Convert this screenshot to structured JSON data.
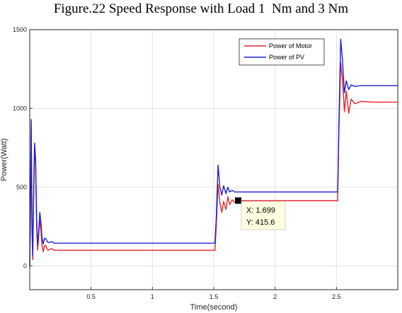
{
  "caption": "Figure.22 Speed Response with Load 1  Nm and 3 Nm",
  "colors": {
    "motor": "#e3262b",
    "pv": "#1f1fd6",
    "grid": "#dcdcdc",
    "axes": "#262626"
  },
  "chart_data": {
    "type": "line",
    "title": "",
    "xlabel": "Time(second)",
    "ylabel": "Power(Watt)",
    "xlim": [
      0,
      3
    ],
    "ylim": [
      -150,
      1500
    ],
    "x_ticks": [
      0.5,
      1,
      1.5,
      2,
      2.5
    ],
    "y_ticks": [
      0,
      500,
      1000,
      1500
    ],
    "grid": true,
    "legend_position": "top-right",
    "series": [
      {
        "name": "Power of Motor",
        "color": "#e3262b",
        "x": [
          0,
          0.005,
          0.012,
          0.018,
          0.024,
          0.032,
          0.04,
          0.048,
          0.056,
          0.064,
          0.072,
          0.082,
          0.09,
          0.1,
          0.11,
          0.12,
          0.13,
          0.14,
          0.15,
          0.16,
          0.18,
          0.2,
          0.22,
          0.25,
          0.3,
          0.4,
          0.6,
          0.8,
          1.0,
          1.2,
          1.4,
          1.51,
          1.52,
          1.535,
          1.55,
          1.565,
          1.58,
          1.6,
          1.615,
          1.63,
          1.65,
          1.67,
          1.7,
          1.8,
          2.0,
          2.2,
          2.4,
          2.51,
          2.52,
          2.535,
          2.55,
          2.565,
          2.58,
          2.6,
          2.62,
          2.65,
          2.7,
          2.8,
          3.0
        ],
        "y": [
          0,
          300,
          880,
          250,
          40,
          420,
          760,
          640,
          260,
          100,
          180,
          290,
          240,
          130,
          90,
          130,
          130,
          110,
          100,
          105,
          110,
          100,
          100,
          100,
          100,
          100,
          100,
          100,
          100,
          100,
          100,
          100,
          250,
          520,
          400,
          340,
          410,
          360,
          440,
          390,
          420,
          405,
          415.6,
          415,
          415,
          415,
          415,
          415,
          850,
          1290,
          1180,
          980,
          1110,
          970,
          1060,
          1030,
          1045,
          1040,
          1040
        ]
      },
      {
        "name": "Power of PV",
        "color": "#1f1fd6",
        "x": [
          0,
          0.005,
          0.012,
          0.018,
          0.024,
          0.032,
          0.04,
          0.048,
          0.056,
          0.064,
          0.072,
          0.082,
          0.09,
          0.1,
          0.11,
          0.12,
          0.13,
          0.14,
          0.15,
          0.16,
          0.18,
          0.2,
          0.22,
          0.25,
          0.3,
          0.4,
          0.6,
          0.8,
          1.0,
          1.2,
          1.4,
          1.51,
          1.52,
          1.535,
          1.55,
          1.565,
          1.58,
          1.6,
          1.615,
          1.63,
          1.65,
          1.67,
          1.7,
          1.8,
          2.0,
          2.2,
          2.4,
          2.51,
          2.52,
          2.535,
          2.55,
          2.565,
          2.58,
          2.6,
          2.62,
          2.65,
          2.7,
          2.8,
          3.0
        ],
        "y": [
          0,
          350,
          930,
          300,
          60,
          480,
          780,
          680,
          310,
          130,
          210,
          340,
          290,
          180,
          140,
          175,
          175,
          160,
          150,
          150,
          155,
          145,
          145,
          145,
          145,
          145,
          145,
          145,
          145,
          145,
          145,
          145,
          300,
          640,
          500,
          450,
          510,
          460,
          500,
          470,
          480,
          470,
          470,
          470,
          470,
          470,
          470,
          470,
          900,
          1440,
          1300,
          1100,
          1175,
          1120,
          1150,
          1140,
          1145,
          1145,
          1145
        ]
      }
    ],
    "annotation": {
      "x": 1.699,
      "y": 415.6,
      "text_x": "X: 1.699",
      "text_y": "Y: 415.6"
    }
  }
}
